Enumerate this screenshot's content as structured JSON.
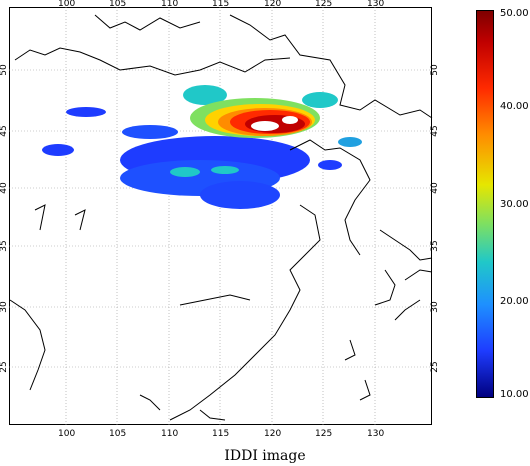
{
  "caption": "IDDI image",
  "lon_ticks": [
    "100",
    "105",
    "110",
    "115",
    "120",
    "125",
    "130"
  ],
  "lat_ticks": [
    "50",
    "45",
    "40",
    "35",
    "30",
    "25"
  ],
  "colorbar": {
    "labels": [
      "50.00",
      "40.00",
      "30.00",
      "20.00",
      "10.00"
    ],
    "min": 10,
    "max": 50
  },
  "map": {
    "lon_range": [
      95,
      135
    ],
    "lat_range": [
      20,
      54
    ],
    "grid": true,
    "colors": {
      "high": "#c00000",
      "mid": "#e6e600",
      "low": "#1e3cff",
      "coast": "#000000"
    }
  }
}
